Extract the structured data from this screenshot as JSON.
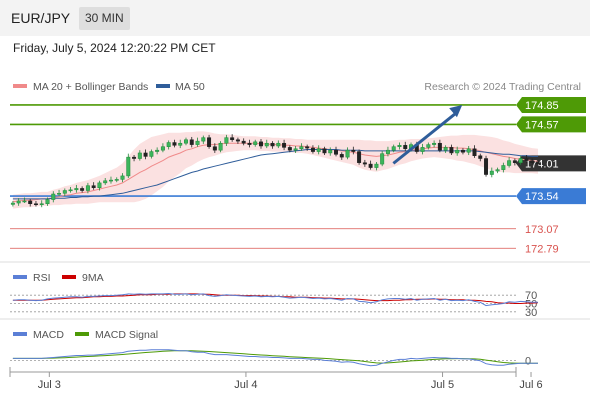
{
  "header": {
    "symbol": "EUR/JPY",
    "timeframe": "30 MIN",
    "datetime": "Friday, July 5, 2024 12:20:22 PM CET"
  },
  "chart_data": [
    {
      "type": "line",
      "panel": "price",
      "legend": [
        {
          "name": "MA 20 + Bollinger Bands",
          "color": "#f08a8a"
        },
        {
          "name": "MA 50",
          "color": "#2f5d9a"
        }
      ],
      "watermark": "Research © 2024 Trading Central",
      "ylim": [
        172.65,
        174.95
      ],
      "levels": [
        {
          "value": 174.85,
          "label": "174.85",
          "color": "#4e9a06",
          "kind": "resistance"
        },
        {
          "value": 174.57,
          "label": "174.57",
          "color": "#4e9a06",
          "kind": "resistance"
        },
        {
          "value": 174.01,
          "label": "174.01",
          "color": "#333333",
          "kind": "current"
        },
        {
          "value": 173.54,
          "label": "173.54",
          "color": "#3a7bd5",
          "kind": "pivot"
        },
        {
          "value": 173.07,
          "label": "173.07",
          "color": "#d9534f",
          "kind": "support"
        },
        {
          "value": 172.79,
          "label": "172.79",
          "color": "#d9534f",
          "kind": "support"
        }
      ],
      "arrow": {
        "from": [
          1.95,
          174.01
        ],
        "to": [
          2.3,
          174.85
        ],
        "color": "#2f5d9a"
      },
      "close": [
        173.44,
        173.47,
        173.47,
        173.43,
        173.42,
        173.43,
        173.49,
        173.57,
        173.58,
        173.62,
        173.63,
        173.65,
        173.62,
        173.69,
        173.66,
        173.73,
        173.76,
        173.77,
        173.78,
        173.83,
        174.1,
        174.08,
        174.16,
        174.11,
        174.18,
        174.2,
        174.25,
        174.31,
        174.27,
        174.3,
        174.35,
        174.28,
        174.33,
        174.38,
        174.25,
        174.2,
        174.3,
        174.38,
        174.35,
        174.33,
        174.3,
        174.28,
        174.32,
        174.26,
        174.3,
        174.26,
        174.3,
        174.24,
        174.2,
        174.22,
        174.25,
        174.23,
        174.18,
        174.22,
        174.16,
        174.2,
        174.14,
        174.1,
        174.2,
        174.18,
        174.02,
        174.0,
        173.95,
        174.0,
        174.15,
        174.2,
        174.25,
        174.27,
        174.22,
        174.28,
        174.18,
        174.24,
        174.28,
        174.3,
        174.2,
        174.24,
        174.16,
        174.2,
        174.17,
        174.22,
        174.12,
        174.08,
        173.85,
        173.9,
        173.92,
        173.98,
        174.05,
        174.02,
        174.08,
        174.05,
        174.02,
        174.01
      ],
      "ma20": [
        173.46,
        173.47,
        173.48,
        173.48,
        173.49,
        173.5,
        173.5,
        173.52,
        173.53,
        173.55,
        173.56,
        173.58,
        173.59,
        173.6,
        173.62,
        173.64,
        173.66,
        173.68,
        173.7,
        173.73,
        173.78,
        173.83,
        173.88,
        173.92,
        173.97,
        174.01,
        174.05,
        174.1,
        174.13,
        174.16,
        174.2,
        174.22,
        174.25,
        174.27,
        174.28,
        174.28,
        174.29,
        174.3,
        174.3,
        174.3,
        174.3,
        174.3,
        174.3,
        174.29,
        174.29,
        174.28,
        174.28,
        174.27,
        174.27,
        174.26,
        174.26,
        174.25,
        174.24,
        174.23,
        174.22,
        174.21,
        174.2,
        174.19,
        174.18,
        174.17,
        174.15,
        174.13,
        174.12,
        174.11,
        174.12,
        174.13,
        174.15,
        174.17,
        174.18,
        174.2,
        174.21,
        174.22,
        174.23,
        174.24,
        174.24,
        174.24,
        174.24,
        174.23,
        174.23,
        174.22,
        174.21,
        174.19,
        174.17,
        174.15,
        174.13,
        174.11,
        174.1,
        174.08,
        174.07,
        174.06,
        174.05,
        174.04
      ],
      "bb_width": [
        0.1,
        0.1,
        0.1,
        0.1,
        0.1,
        0.1,
        0.1,
        0.11,
        0.12,
        0.13,
        0.14,
        0.15,
        0.16,
        0.17,
        0.18,
        0.19,
        0.21,
        0.23,
        0.25,
        0.28,
        0.33,
        0.38,
        0.41,
        0.42,
        0.42,
        0.4,
        0.38,
        0.35,
        0.32,
        0.29,
        0.26,
        0.24,
        0.22,
        0.2,
        0.18,
        0.16,
        0.14,
        0.13,
        0.12,
        0.11,
        0.1,
        0.1,
        0.1,
        0.1,
        0.1,
        0.1,
        0.1,
        0.1,
        0.1,
        0.1,
        0.1,
        0.1,
        0.11,
        0.12,
        0.13,
        0.14,
        0.15,
        0.16,
        0.17,
        0.18,
        0.2,
        0.21,
        0.22,
        0.22,
        0.21,
        0.2,
        0.19,
        0.18,
        0.17,
        0.16,
        0.15,
        0.14,
        0.14,
        0.14,
        0.15,
        0.16,
        0.17,
        0.18,
        0.19,
        0.2,
        0.21,
        0.22,
        0.23,
        0.24,
        0.24,
        0.23,
        0.22,
        0.21,
        0.2,
        0.19,
        0.18,
        0.18
      ],
      "ma50": [
        173.5,
        173.5,
        173.5,
        173.5,
        173.5,
        173.5,
        173.5,
        173.51,
        173.51,
        173.51,
        173.52,
        173.52,
        173.53,
        173.53,
        173.54,
        173.54,
        173.55,
        173.56,
        173.57,
        173.58,
        173.6,
        173.62,
        173.64,
        173.66,
        173.68,
        173.7,
        173.73,
        173.76,
        173.79,
        173.82,
        173.85,
        173.88,
        173.9,
        173.93,
        173.95,
        173.97,
        173.99,
        174.01,
        174.03,
        174.05,
        174.07,
        174.09,
        174.11,
        174.13,
        174.14,
        174.15,
        174.16,
        174.17,
        174.18,
        174.19,
        174.2,
        174.21,
        174.21,
        174.21,
        174.21,
        174.21,
        174.21,
        174.2,
        174.2,
        174.2,
        174.2,
        174.19,
        174.19,
        174.19,
        174.19,
        174.19,
        174.19,
        174.19,
        174.19,
        174.19,
        174.19,
        174.19,
        174.19,
        174.19,
        174.19,
        174.19,
        174.19,
        174.19,
        174.19,
        174.19,
        174.19,
        174.18,
        174.17,
        174.16,
        174.15,
        174.14,
        174.14,
        174.13,
        174.12,
        174.12,
        174.11,
        174.11
      ]
    },
    {
      "type": "line",
      "panel": "rsi",
      "legend": [
        {
          "name": "RSI",
          "color": "#5b7fd6"
        },
        {
          "name": "9MA",
          "color": "#cc0000"
        }
      ],
      "ticks": [
        70,
        50,
        30
      ],
      "ylim": [
        20,
        80
      ],
      "rsi": [
        58,
        59,
        59,
        58,
        57,
        58,
        61,
        63,
        64,
        65,
        66,
        66,
        65,
        67,
        67,
        68,
        69,
        69,
        70,
        71,
        73,
        72,
        73,
        72,
        73,
        73,
        73,
        74,
        72,
        72,
        73,
        71,
        72,
        73,
        69,
        67,
        69,
        71,
        70,
        69,
        68,
        67,
        68,
        66,
        67,
        66,
        67,
        65,
        63,
        64,
        65,
        64,
        62,
        63,
        61,
        62,
        60,
        58,
        62,
        61,
        55,
        54,
        52,
        54,
        59,
        61,
        62,
        62,
        60,
        62,
        58,
        60,
        61,
        62,
        58,
        60,
        57,
        58,
        57,
        59,
        55,
        53,
        45,
        47,
        48,
        50,
        54,
        53,
        55,
        54,
        53,
        53
      ],
      "ma9": [
        58,
        58,
        58,
        58,
        58,
        58,
        59,
        60,
        61,
        62,
        63,
        64,
        64,
        65,
        66,
        66,
        67,
        67,
        68,
        68,
        69,
        70,
        71,
        71,
        71,
        72,
        72,
        72,
        73,
        73,
        73,
        73,
        73,
        72,
        72,
        71,
        70,
        70,
        70,
        70,
        69,
        69,
        69,
        68,
        68,
        67,
        67,
        66,
        66,
        65,
        65,
        65,
        64,
        64,
        63,
        63,
        62,
        61,
        61,
        61,
        60,
        59,
        58,
        57,
        57,
        57,
        58,
        58,
        59,
        59,
        60,
        60,
        60,
        61,
        60,
        60,
        59,
        59,
        59,
        58,
        58,
        57,
        55,
        54,
        52,
        51,
        51,
        50,
        50,
        51,
        51,
        52
      ]
    },
    {
      "type": "line",
      "panel": "macd",
      "legend": [
        {
          "name": "MACD",
          "color": "#5b7fd6"
        },
        {
          "name": "MACD Signal",
          "color": "#4e9a06"
        }
      ],
      "ticks": [
        0
      ],
      "ylim": [
        -0.1,
        0.18
      ],
      "macd": [
        0.02,
        0.02,
        0.02,
        0.02,
        0.02,
        0.02,
        0.025,
        0.03,
        0.035,
        0.04,
        0.045,
        0.05,
        0.05,
        0.055,
        0.055,
        0.06,
        0.065,
        0.07,
        0.075,
        0.08,
        0.095,
        0.1,
        0.105,
        0.105,
        0.11,
        0.11,
        0.11,
        0.11,
        0.105,
        0.1,
        0.1,
        0.09,
        0.085,
        0.085,
        0.07,
        0.06,
        0.06,
        0.06,
        0.055,
        0.05,
        0.045,
        0.04,
        0.04,
        0.035,
        0.035,
        0.03,
        0.03,
        0.025,
        0.02,
        0.02,
        0.02,
        0.015,
        0.01,
        0.01,
        0.0,
        -0.005,
        -0.01,
        -0.02,
        -0.015,
        -0.02,
        -0.035,
        -0.045,
        -0.055,
        -0.05,
        -0.03,
        -0.015,
        0.0,
        0.01,
        0.01,
        0.02,
        0.015,
        0.02,
        0.025,
        0.03,
        0.025,
        0.025,
        0.02,
        0.02,
        0.015,
        0.015,
        0.005,
        -0.005,
        -0.035,
        -0.045,
        -0.05,
        -0.05,
        -0.04,
        -0.035,
        -0.03,
        -0.03,
        -0.03,
        -0.03
      ],
      "signal": [
        0.02,
        0.02,
        0.02,
        0.02,
        0.02,
        0.02,
        0.021,
        0.023,
        0.025,
        0.028,
        0.031,
        0.034,
        0.037,
        0.04,
        0.043,
        0.046,
        0.049,
        0.053,
        0.057,
        0.061,
        0.066,
        0.071,
        0.076,
        0.081,
        0.086,
        0.09,
        0.094,
        0.097,
        0.099,
        0.1,
        0.1,
        0.099,
        0.097,
        0.095,
        0.092,
        0.088,
        0.084,
        0.08,
        0.076,
        0.072,
        0.068,
        0.064,
        0.06,
        0.056,
        0.052,
        0.048,
        0.045,
        0.042,
        0.038,
        0.035,
        0.032,
        0.029,
        0.026,
        0.023,
        0.02,
        0.016,
        0.012,
        0.008,
        0.004,
        0.0,
        -0.005,
        -0.012,
        -0.02,
        -0.026,
        -0.028,
        -0.026,
        -0.022,
        -0.017,
        -0.012,
        -0.006,
        -0.002,
        0.002,
        0.006,
        0.01,
        0.013,
        0.016,
        0.017,
        0.018,
        0.018,
        0.017,
        0.015,
        0.011,
        0.003,
        -0.006,
        -0.015,
        -0.022,
        -0.026,
        -0.028,
        -0.029,
        -0.03,
        -0.03,
        -0.03
      ]
    }
  ],
  "xaxis": {
    "ticks": [
      {
        "label": "Jul 3",
        "x": 0.2
      },
      {
        "label": "Jul 4",
        "x": 1.2
      },
      {
        "label": "Jul 5",
        "x": 2.2
      },
      {
        "label": "Jul 6",
        "x": 2.65
      }
    ],
    "xlim": [
      0,
      2.95
    ],
    "bars_xlim": [
      0,
      2.7
    ]
  }
}
